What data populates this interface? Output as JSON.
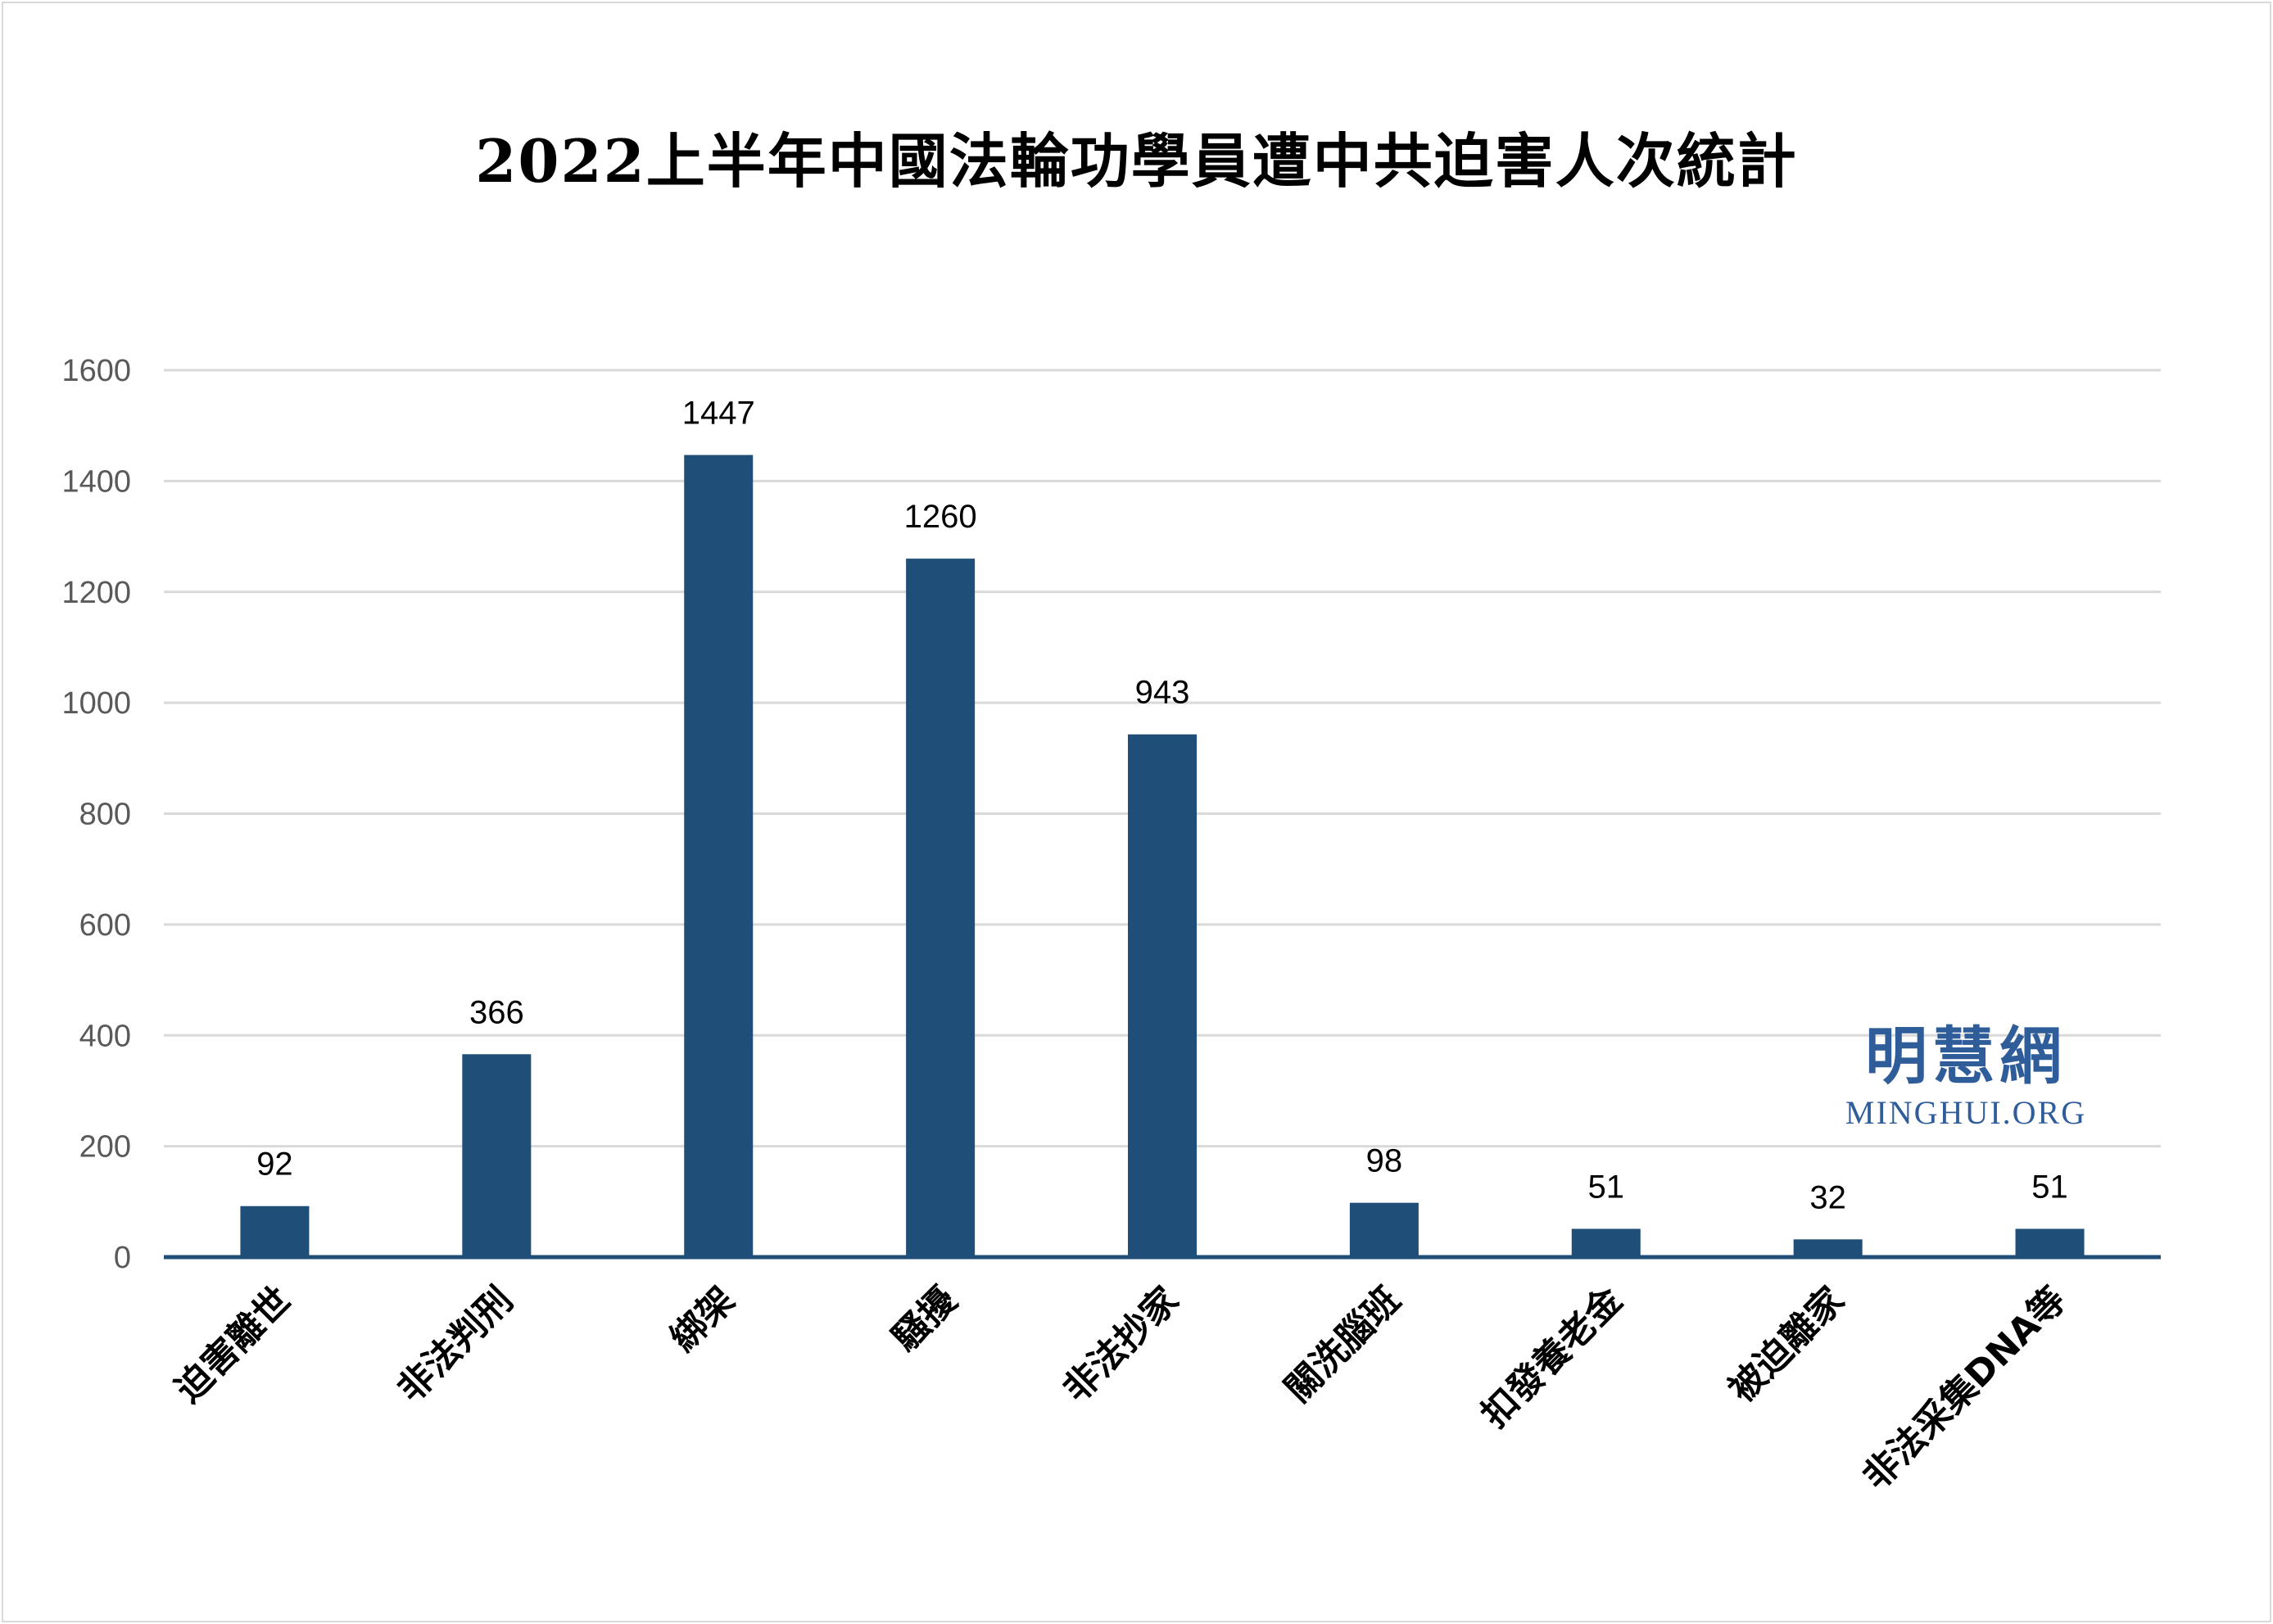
{
  "chart_data": {
    "type": "bar",
    "title": "2022上半年中國法輪功學員遭中共迫害人次統計",
    "categories": [
      "迫害離世",
      "非法判刑",
      "綁架",
      "騷擾",
      "非法抄家",
      "關洗腦班",
      "扣發養老金",
      "被迫離家",
      "非法采集DNA等"
    ],
    "values": [
      92,
      366,
      1447,
      1260,
      943,
      98,
      51,
      32,
      51
    ],
    "ylim": [
      0,
      1600
    ],
    "yticks": [
      0,
      200,
      400,
      600,
      800,
      1000,
      1200,
      1400,
      1600
    ],
    "xlabel": "",
    "ylabel": "",
    "grid": true,
    "legend": "none",
    "bar_color": "#1f4e79",
    "axis_color": "#1f4e79",
    "grid_color": "#d9d9d9"
  },
  "watermark": {
    "name_cn": "明慧網",
    "name_en": "MINGHUI.ORG",
    "color": "#2f5d9a"
  }
}
